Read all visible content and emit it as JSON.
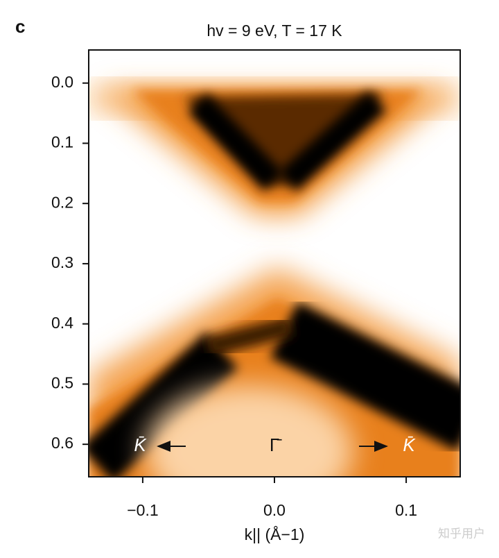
{
  "chart_data": {
    "type": "heatmap",
    "panel_label": "c",
    "title": "hv = 9 eV, T = 17 K",
    "x_label": "k|| (Å−1)",
    "xlim": [
      -0.141,
      0.141
    ],
    "ylim": [
      -0.055,
      0.654
    ],
    "y_inverted": true,
    "xticks": [
      {
        "value": -0.1,
        "label": "−0.1"
      },
      {
        "value": 0,
        "label": "0.0"
      },
      {
        "value": 0.1,
        "label": "0.1"
      }
    ],
    "yticks": [
      {
        "value": 0,
        "label": "0.0"
      },
      0.1,
      0.2,
      0.3,
      0.4,
      0.5,
      0.6
    ],
    "annotations": [
      "K̄",
      "Γ̄",
      "K̄"
    ],
    "watermark": "知乎用户"
  }
}
